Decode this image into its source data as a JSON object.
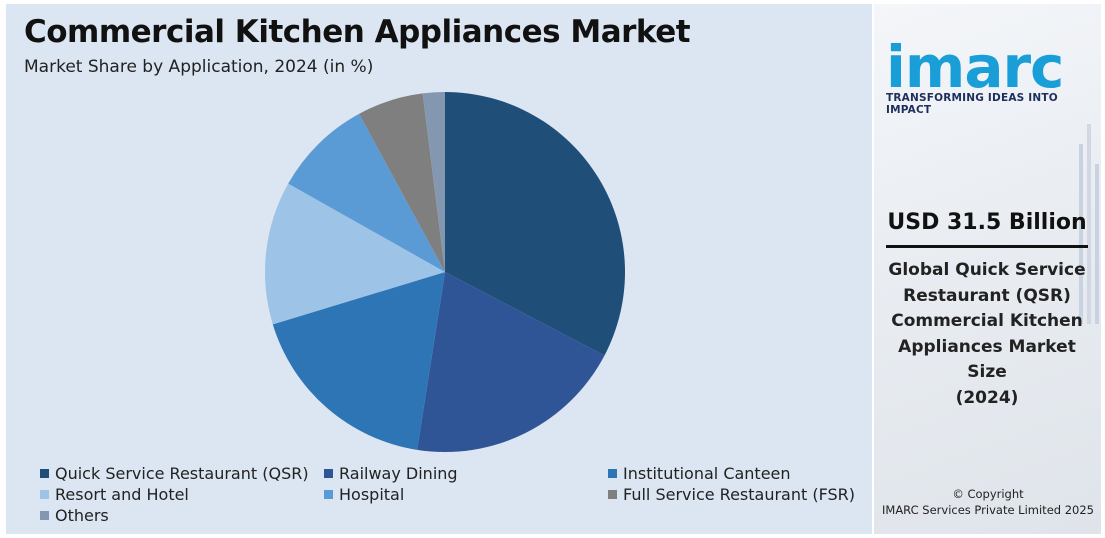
{
  "chart_data": {
    "type": "pie",
    "title": "Commercial Kitchen Appliances Market",
    "subtitle": "Market Share by Application, 2024 (in %)",
    "categories": [
      "Quick Service Restaurant (QSR)",
      "Railway Dining",
      "Institutional Canteen",
      "Resort and Hotel",
      "Hospital",
      "Full Service Restaurant (FSR)",
      "Others"
    ],
    "values": [
      33,
      20,
      18,
      13,
      9,
      6,
      2
    ],
    "colors": [
      "#1f4e79",
      "#2f5597",
      "#2e75b6",
      "#9dc3e6",
      "#5b9bd5",
      "#7f7f7f",
      "#8497b0"
    ],
    "legend_position": "bottom"
  },
  "brand": {
    "logo_text": "imarc",
    "tagline": "TRANSFORMING IDEAS INTO IMPACT"
  },
  "highlight": {
    "value": "USD 31.5 Billion",
    "description_lines": [
      "Global Quick Service",
      "Restaurant (QSR)",
      "Commercial Kitchen",
      "Appliances Market",
      "Size",
      "(2024)"
    ]
  },
  "footer": {
    "copyright_line1": "© Copyright",
    "copyright_line2": "IMARC Services Private Limited 2025"
  }
}
